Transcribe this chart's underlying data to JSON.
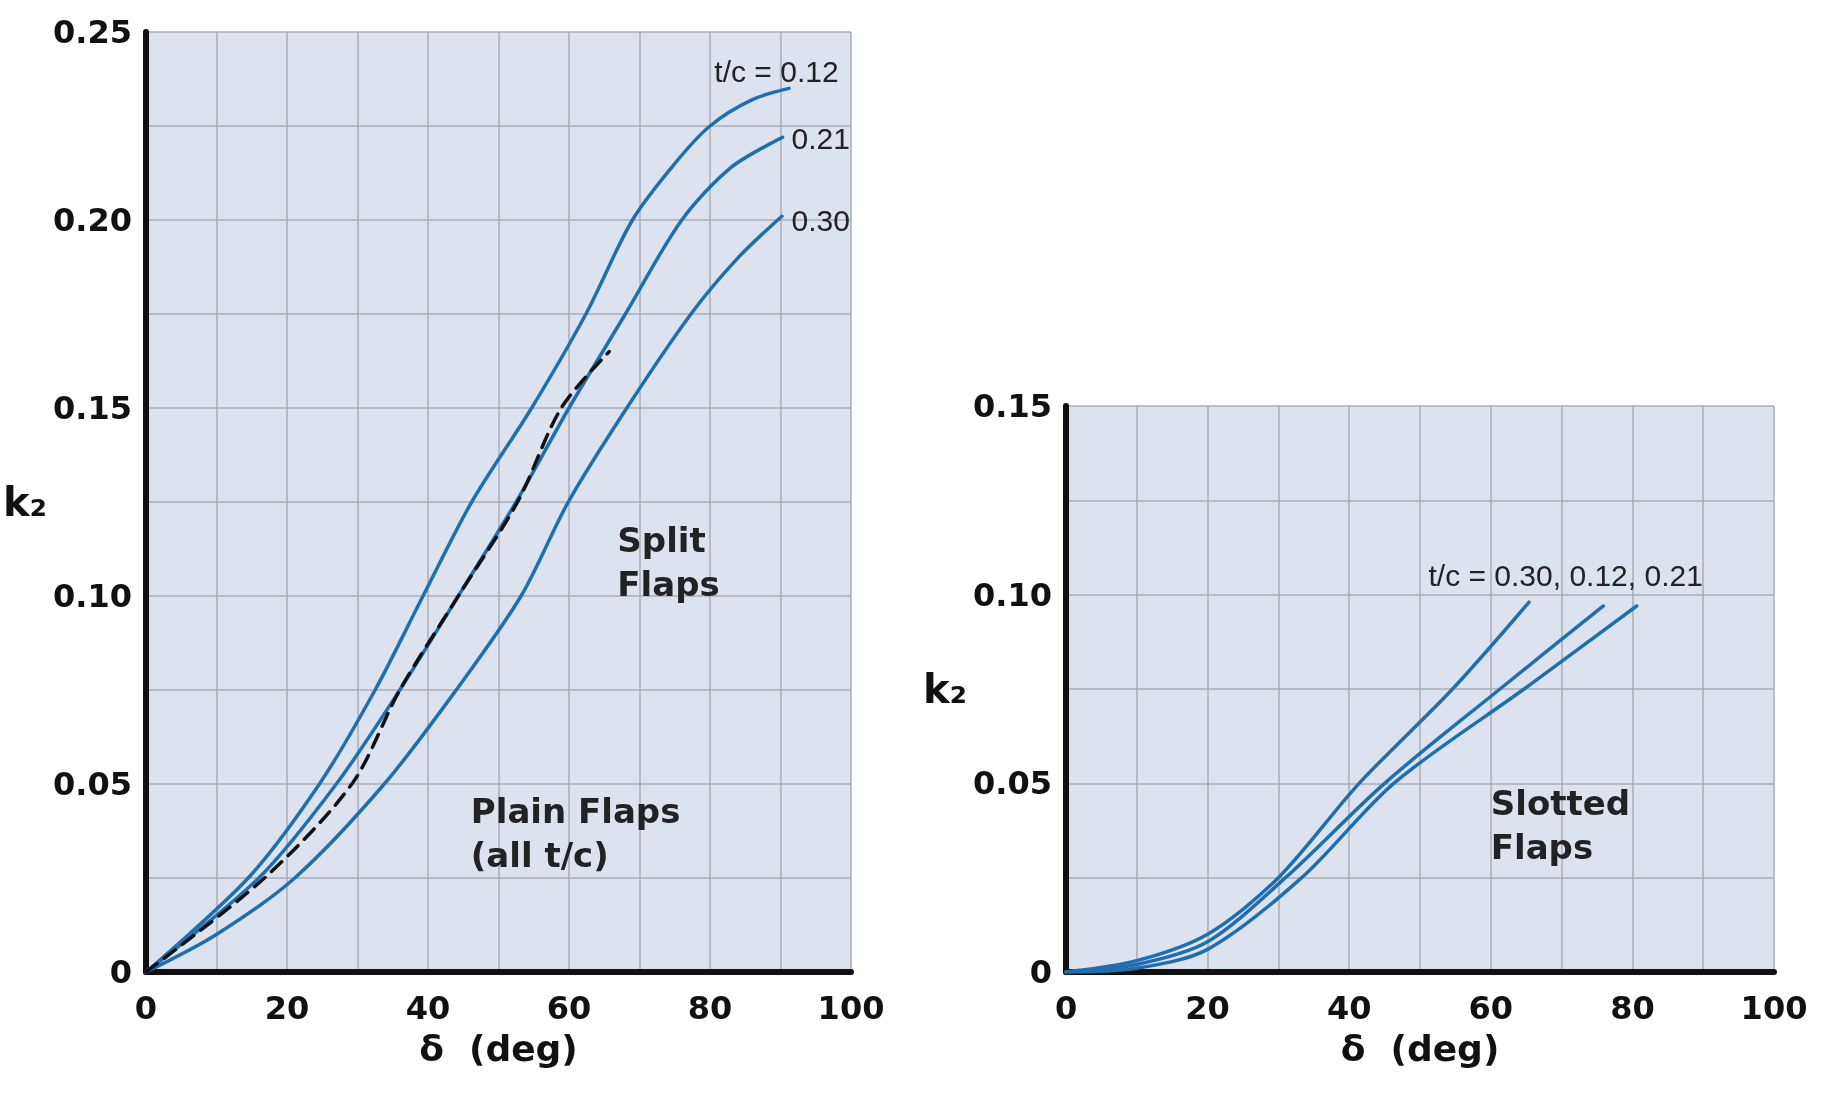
{
  "chart_data": [
    {
      "type": "line",
      "xlabel": "δ  (deg)",
      "ylabel": "k₂",
      "xlim": [
        0,
        100
      ],
      "ylim": [
        0,
        0.25
      ],
      "xticks": [
        0,
        {
          "value": 10,
          "label": null
        },
        20,
        {
          "value": 30,
          "label": null
        },
        40,
        {
          "value": 50,
          "label": null
        },
        60,
        {
          "value": 70,
          "label": null
        },
        80,
        {
          "value": 90,
          "label": null
        },
        100
      ],
      "yticks": [
        0,
        {
          "value": 0.025,
          "label": null
        },
        {
          "value": 0.05,
          "label": "0.05"
        },
        {
          "value": 0.075,
          "label": null
        },
        {
          "value": 0.1,
          "label": "0.10"
        },
        {
          "value": 0.125,
          "label": null
        },
        {
          "value": 0.15,
          "label": "0.15"
        },
        {
          "value": 0.175,
          "label": null
        },
        {
          "value": 0.2,
          "label": "0.20"
        },
        {
          "value": 0.225,
          "label": null
        },
        {
          "value": 0.25,
          "label": "0.25"
        }
      ],
      "grid": true,
      "marker": "none",
      "series": [
        {
          "color": "#1f6fb0",
          "x": [
            0,
            14.5,
            24.6,
            32.5,
            39.3,
            46.2,
            54.7,
            62.4,
            69,
            75,
            80,
            86,
            91.2
          ],
          "values": [
            0,
            0.025,
            0.05,
            0.075,
            0.1,
            0.125,
            0.15,
            0.175,
            0.2,
            0.215,
            0.225,
            0.232,
            0.235
          ]
        },
        {
          "color": "#1f6fb0",
          "x": [
            0,
            16,
            27,
            36,
            44.3,
            52.5,
            60,
            68,
            76,
            83,
            90.3
          ],
          "values": [
            0,
            0.025,
            0.05,
            0.075,
            0.1,
            0.125,
            0.15,
            0.175,
            0.2,
            0.214,
            0.222
          ]
        },
        {
          "color": "#1f6fb0",
          "x": [
            0,
            10,
            21.1,
            33.8,
            44,
            53.2,
            59.9,
            68.2,
            77.3,
            84,
            90.2
          ],
          "values": [
            0,
            0.01,
            0.025,
            0.05,
            0.075,
            0.1,
            0.125,
            0.15,
            0.175,
            0.19,
            0.201
          ]
        },
        {
          "color": "#111111",
          "line_style": "dashed",
          "x": [
            0,
            16.8,
            29.2,
            36,
            44.3,
            52.7,
            58.9,
            65.7
          ],
          "values": [
            0,
            0.025,
            0.05,
            0.075,
            0.1,
            0.125,
            0.15,
            0.165
          ]
        }
      ],
      "annotations": [
        "t/c = 0.12",
        "0.21",
        "0.30",
        "Split\nFlaps",
        "Plain Flaps\n(all t/c)"
      ]
    },
    {
      "type": "line",
      "xlabel": "δ  (deg)",
      "ylabel": "k₂",
      "xlim": [
        0,
        100
      ],
      "ylim": [
        0,
        0.15
      ],
      "xticks": [
        0,
        {
          "value": 10,
          "label": null
        },
        20,
        {
          "value": 30,
          "label": null
        },
        40,
        {
          "value": 50,
          "label": null
        },
        60,
        {
          "value": 70,
          "label": null
        },
        80,
        {
          "value": 90,
          "label": null
        },
        100
      ],
      "yticks": [
        0,
        {
          "value": 0.025,
          "label": null
        },
        {
          "value": 0.05,
          "label": "0.05"
        },
        {
          "value": 0.075,
          "label": null
        },
        {
          "value": 0.1,
          "label": "0.10"
        },
        {
          "value": 0.125,
          "label": null
        },
        {
          "value": 0.15,
          "label": "0.15"
        }
      ],
      "grid": true,
      "marker": "none",
      "series": [
        {
          "color": "#1f6fb0",
          "x": [
            0,
            10,
            20,
            30,
            41.4,
            54.6,
            65.4
          ],
          "values": [
            0,
            0.003,
            0.01,
            0.025,
            0.05,
            0.075,
            0.098
          ]
        },
        {
          "color": "#1f6fb0",
          "x": [
            0,
            10,
            20,
            31,
            45,
            61.3,
            75.9
          ],
          "values": [
            0,
            0.002,
            0.008,
            0.025,
            0.05,
            0.075,
            0.097
          ]
        },
        {
          "color": "#1f6fb0",
          "x": [
            0,
            10,
            20,
            33.3,
            46.3,
            64.7,
            80.6
          ],
          "values": [
            0,
            0.001,
            0.006,
            0.025,
            0.05,
            0.075,
            0.097
          ]
        }
      ],
      "annotations": [
        "t/c = 0.30, 0.12, 0.21",
        "Slotted\nFlaps"
      ]
    }
  ]
}
